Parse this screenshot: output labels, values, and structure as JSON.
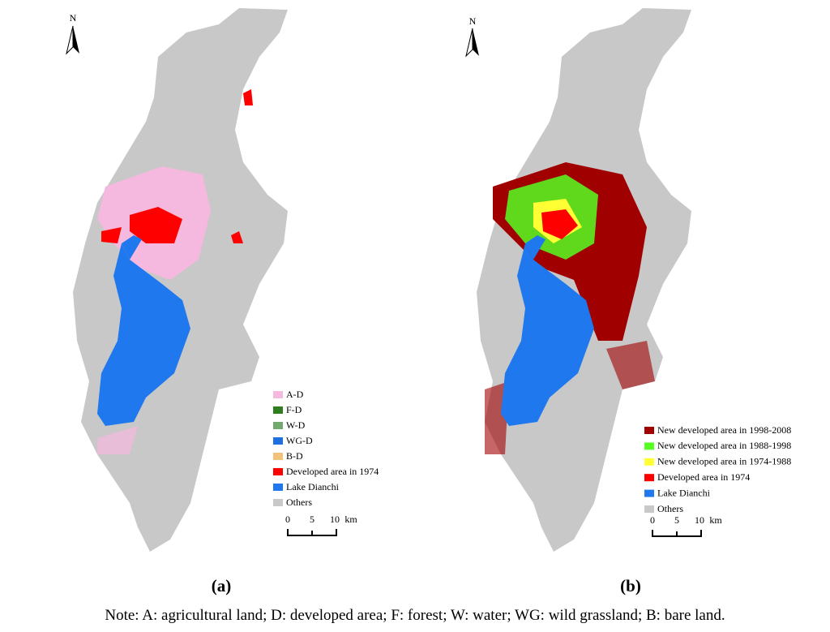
{
  "panels": [
    {
      "north": "N",
      "label": "(a)",
      "legend": [
        {
          "text": "A-D",
          "color": "#f5b8de"
        },
        {
          "text": "F-D",
          "color": "#2e7d1e"
        },
        {
          "text": "W-D",
          "color": "#73a86e"
        },
        {
          "text": "WG-D",
          "color": "#1f6fe0"
        },
        {
          "text": "B-D",
          "color": "#f2c27a"
        },
        {
          "text": "Developed area in 1974",
          "color": "#ff0000"
        },
        {
          "text": "Lake Dianchi",
          "color": "#1f78ee"
        },
        {
          "text": "Others",
          "color": "#c8c8c8"
        }
      ],
      "scale": [
        "0",
        "5",
        "10",
        "km"
      ]
    },
    {
      "north": "N",
      "label": "(b)",
      "legend": [
        {
          "text": "New developed area in 1998-2008",
          "color": "#a00000"
        },
        {
          "text": "New developed area in 1988-1998",
          "color": "#55ff22"
        },
        {
          "text": "New developed area in 1974-1988",
          "color": "#ffff33"
        },
        {
          "text": "Developed area in  1974",
          "color": "#ff0000"
        },
        {
          "text": "Lake Dianchi",
          "color": "#1f78ee"
        },
        {
          "text": "Others",
          "color": "#c8c8c8"
        }
      ],
      "scale": [
        "0",
        "5",
        "10",
        "km"
      ]
    }
  ],
  "note": "Note: A: agricultural land; D: developed area; F: forest; W: water; WG: wild grassland; B: bare land."
}
